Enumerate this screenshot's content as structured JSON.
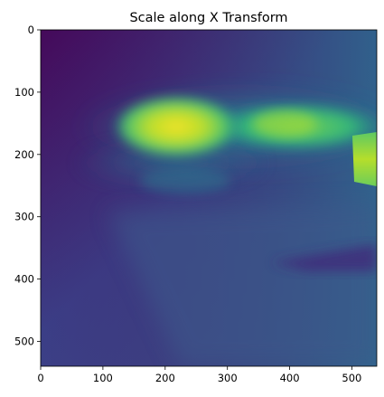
{
  "figure": {
    "title": "Scale along X Transform"
  },
  "axes": {
    "x_ticks": [
      "0",
      "100",
      "200",
      "300",
      "400",
      "500"
    ],
    "y_ticks": [
      "0",
      "100",
      "200",
      "300",
      "400",
      "500"
    ]
  },
  "image": {
    "colormap": "viridis",
    "width_units": 540,
    "height_units": 540
  },
  "colors": {
    "background": "#ffffff",
    "axis": "#000000",
    "viridis_dark": "#440154",
    "viridis_mid": "#21918c",
    "viridis_bright": "#fde725"
  }
}
